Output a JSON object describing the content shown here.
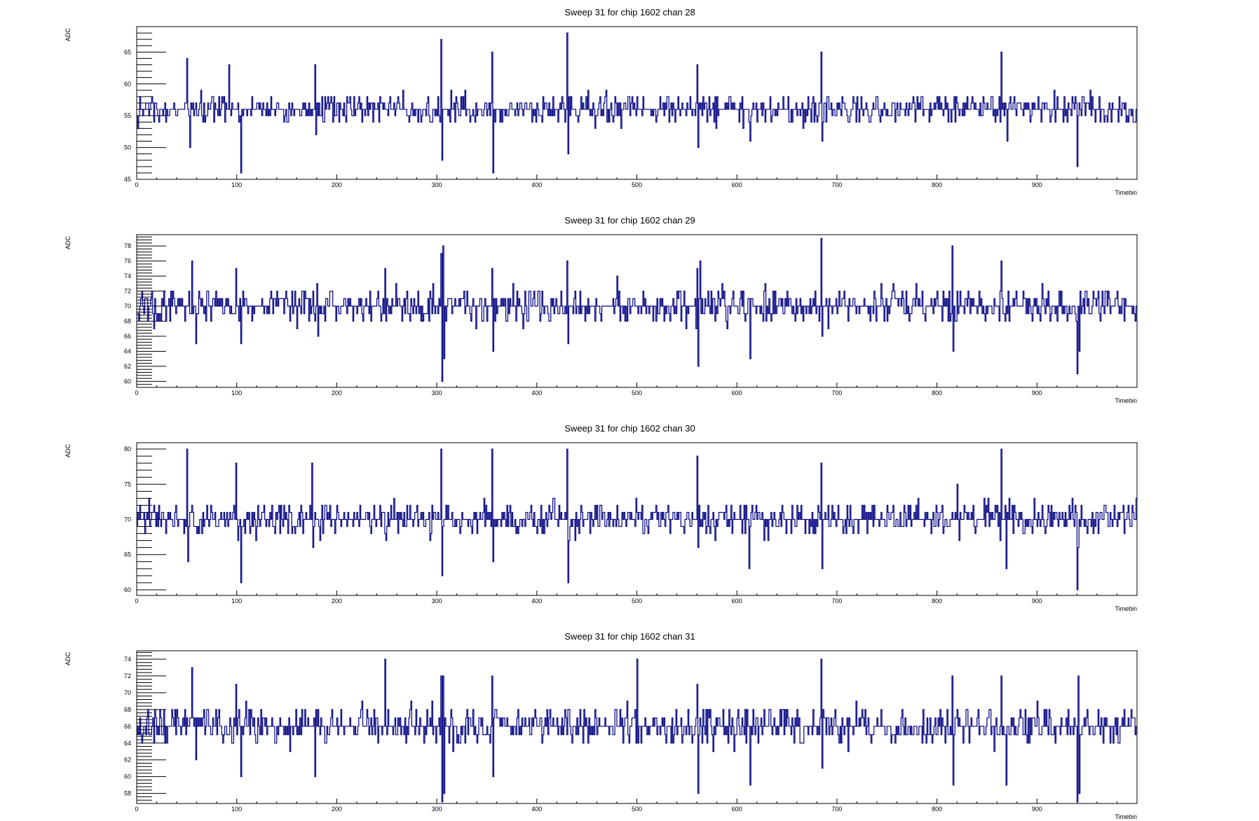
{
  "chart_data": [
    {
      "type": "line",
      "title": "Sweep 31 for chip 1602 chan 28",
      "xlabel": "Timebin",
      "ylabel": "ADC",
      "xlim": [
        0,
        1000
      ],
      "ylim": [
        45,
        69
      ],
      "x_ticks": [
        0,
        100,
        200,
        300,
        400,
        500,
        600,
        700,
        800,
        900
      ],
      "y_ticks": [
        45,
        50,
        55,
        60,
        65
      ],
      "grid": false,
      "series": [
        {
          "color": "#000080",
          "baseline": 56,
          "noise": 2,
          "spikes": [
            [
              50,
              64
            ],
            [
              53,
              50
            ],
            [
              92,
              63
            ],
            [
              104,
              46
            ],
            [
              178,
              63
            ],
            [
              179,
              52
            ],
            [
              304,
              67
            ],
            [
              305,
              48
            ],
            [
              355,
              65
            ],
            [
              356,
              46
            ],
            [
              430,
              68
            ],
            [
              431,
              49
            ],
            [
              560,
              63
            ],
            [
              561,
              50
            ],
            [
              613,
              51
            ],
            [
              684,
              65
            ],
            [
              685,
              51
            ],
            [
              864,
              65
            ],
            [
              870,
              51
            ],
            [
              940,
              47
            ],
            [
              941,
              55
            ]
          ]
        }
      ]
    },
    {
      "type": "line",
      "title": "Sweep 31 for chip 1602 chan 29",
      "xlabel": "Timebin",
      "ylabel": "ADC",
      "xlim": [
        0,
        1000
      ],
      "ylim": [
        59.2,
        79.5
      ],
      "x_ticks": [
        0,
        100,
        200,
        300,
        400,
        500,
        600,
        700,
        800,
        900
      ],
      "y_ticks": [
        60,
        62,
        64,
        66,
        68,
        70,
        72,
        74,
        76,
        78
      ],
      "grid": false,
      "series": [
        {
          "color": "#000080",
          "baseline": 70,
          "noise": 2,
          "spikes": [
            [
              55,
              76
            ],
            [
              59,
              65
            ],
            [
              99,
              75
            ],
            [
              104,
              65
            ],
            [
              180,
              73
            ],
            [
              181,
              66
            ],
            [
              248,
              75
            ],
            [
              304,
              77
            ],
            [
              305,
              60
            ],
            [
              306,
              78
            ],
            [
              307,
              63
            ],
            [
              355,
              75
            ],
            [
              356,
              64
            ],
            [
              430,
              76
            ],
            [
              431,
              65
            ],
            [
              480,
              74
            ],
            [
              560,
              75
            ],
            [
              561,
              62
            ],
            [
              563,
              76
            ],
            [
              613,
              63
            ],
            [
              684,
              79
            ],
            [
              685,
              66
            ],
            [
              815,
              78
            ],
            [
              816,
              64
            ],
            [
              864,
              76
            ],
            [
              940,
              61
            ],
            [
              942,
              64
            ]
          ]
        }
      ]
    },
    {
      "type": "line",
      "title": "Sweep 31 for chip 1602 chan 30",
      "xlabel": "Timebin",
      "ylabel": "ADC",
      "xlim": [
        0,
        1000
      ],
      "ylim": [
        59.2,
        80.9
      ],
      "x_ticks": [
        0,
        100,
        200,
        300,
        400,
        500,
        600,
        700,
        800,
        900
      ],
      "y_ticks": [
        60,
        65,
        70,
        75,
        80
      ],
      "grid": false,
      "series": [
        {
          "color": "#000080",
          "baseline": 70,
          "noise": 2,
          "spikes": [
            [
              50,
              80
            ],
            [
              51,
              64
            ],
            [
              99,
              78
            ],
            [
              104,
              61
            ],
            [
              175,
              78
            ],
            [
              176,
              66
            ],
            [
              304,
              80
            ],
            [
              305,
              62
            ],
            [
              355,
              80
            ],
            [
              356,
              64
            ],
            [
              430,
              80
            ],
            [
              431,
              61
            ],
            [
              560,
              79
            ],
            [
              561,
              66
            ],
            [
              612,
              63
            ],
            [
              684,
              78
            ],
            [
              685,
              63
            ],
            [
              820,
              75
            ],
            [
              864,
              80
            ],
            [
              869,
              63
            ],
            [
              940,
              60
            ],
            [
              941,
              66
            ]
          ]
        }
      ]
    },
    {
      "type": "line",
      "title": "Sweep 31 for chip 1602 chan 31",
      "xlabel": "Timebin",
      "ylabel": "ADC",
      "xlim": [
        0,
        1000
      ],
      "ylim": [
        56.8,
        75
      ],
      "x_ticks": [
        0,
        100,
        200,
        300,
        400,
        500,
        600,
        700,
        800,
        900
      ],
      "y_ticks": [
        58,
        60,
        62,
        64,
        66,
        68,
        70,
        72,
        74
      ],
      "grid": false,
      "series": [
        {
          "color": "#000080",
          "baseline": 66,
          "noise": 2,
          "spikes": [
            [
              55,
              73
            ],
            [
              59,
              62
            ],
            [
              99,
              71
            ],
            [
              104,
              60
            ],
            [
              178,
              60
            ],
            [
              248,
              74
            ],
            [
              304,
              72
            ],
            [
              305,
              57
            ],
            [
              306,
              72
            ],
            [
              307,
              58
            ],
            [
              355,
              72
            ],
            [
              356,
              60
            ],
            [
              500,
              74
            ],
            [
              501,
              64
            ],
            [
              560,
              71
            ],
            [
              561,
              58
            ],
            [
              613,
              59
            ],
            [
              684,
              74
            ],
            [
              685,
              61
            ],
            [
              815,
              72
            ],
            [
              816,
              59
            ],
            [
              864,
              72
            ],
            [
              869,
              59
            ],
            [
              940,
              57
            ],
            [
              941,
              72
            ],
            [
              942,
              58
            ]
          ]
        }
      ]
    }
  ]
}
